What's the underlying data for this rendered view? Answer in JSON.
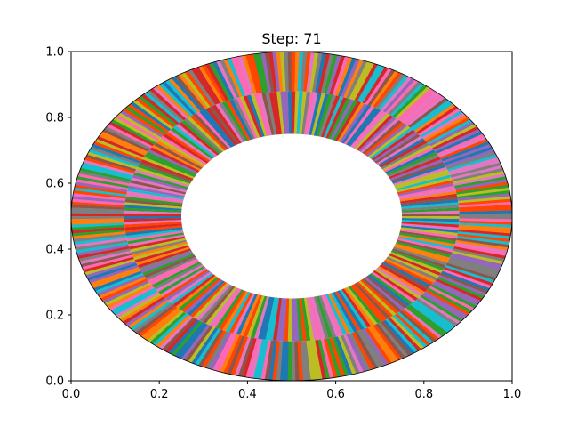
{
  "chart_data": {
    "type": "pie",
    "title": "Step: 71",
    "xlabel": "",
    "ylabel": "",
    "xlim": [
      0,
      1
    ],
    "ylim": [
      0,
      1
    ],
    "xticks": [
      "0.0",
      "0.2",
      "0.4",
      "0.6",
      "0.8",
      "1.0"
    ],
    "yticks": [
      "0.0",
      "0.2",
      "0.4",
      "0.6",
      "0.8",
      "1.0"
    ],
    "grid": false,
    "legend": "none",
    "center": [
      0.5,
      0.5
    ],
    "radius_outer": 0.5,
    "radius_middle": 0.38,
    "radius_inner": 0.25,
    "rings": [
      {
        "name": "",
        "inner_radius": 0.38,
        "outer_radius": 0.5,
        "segment_count": 360,
        "segment_value": 1,
        "edgecolor": "none"
      },
      {
        "name": "",
        "inner_radius": 0.25,
        "outer_radius": 0.38,
        "segment_count": 280,
        "segment_value": 1,
        "edgecolor": "none"
      }
    ],
    "colors": [
      "#1f77b4",
      "#ff7f0e",
      "#2ca02c",
      "#d62728",
      "#9467bd",
      "#8c564b",
      "#e377c2",
      "#7f7f7f",
      "#bcbd22",
      "#17becf",
      "#ff69b4",
      "#ff4500"
    ]
  }
}
